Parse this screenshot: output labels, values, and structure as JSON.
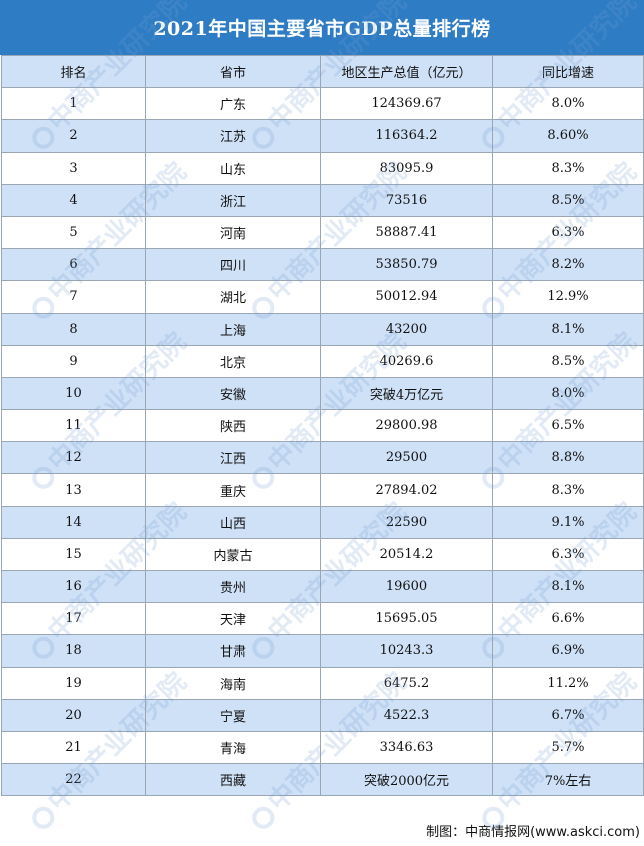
{
  "title": "2021年中国主要省市GDP总量排行榜",
  "columns": [
    "排名",
    "省市",
    "地区生产总值（亿元）",
    "同比增速"
  ],
  "rows": [
    [
      "1",
      "广东",
      "124369.67",
      "8.0%"
    ],
    [
      "2",
      "江苏",
      "116364.2",
      "8.60%"
    ],
    [
      "3",
      "山东",
      "83095.9",
      "8.3%"
    ],
    [
      "4",
      "浙江",
      "73516",
      "8.5%"
    ],
    [
      "5",
      "河南",
      "58887.41",
      "6.3%"
    ],
    [
      "6",
      "四川",
      "53850.79",
      "8.2%"
    ],
    [
      "7",
      "湖北",
      "50012.94",
      "12.9%"
    ],
    [
      "8",
      "上海",
      "43200",
      "8.1%"
    ],
    [
      "9",
      "北京",
      "40269.6",
      "8.5%"
    ],
    [
      "10",
      "安徽",
      "突破4万亿元",
      "8.0%"
    ],
    [
      "11",
      "陕西",
      "29800.98",
      "6.5%"
    ],
    [
      "12",
      "江西",
      "29500",
      "8.8%"
    ],
    [
      "13",
      "重庆",
      "27894.02",
      "8.3%"
    ],
    [
      "14",
      "山西",
      "22590",
      "9.1%"
    ],
    [
      "15",
      "内蒙古",
      "20514.2",
      "6.3%"
    ],
    [
      "16",
      "贵州",
      "19600",
      "8.1%"
    ],
    [
      "17",
      "天津",
      "15695.05",
      "6.6%"
    ],
    [
      "18",
      "甘肃",
      "10243.3",
      "6.9%"
    ],
    [
      "19",
      "海南",
      "6475.2",
      "11.2%"
    ],
    [
      "20",
      "宁夏",
      "4522.3",
      "6.7%"
    ],
    [
      "21",
      "青海",
      "3346.63",
      "5.7%"
    ],
    [
      "22",
      "西藏",
      "突破2000亿元",
      "7%左右"
    ]
  ],
  "footer": "制图：中商情报网(www.askci.com)",
  "watermark": "中商产业研究院",
  "colors": {
    "header_bar": "#2e7cc4",
    "stripe": "#cfe1f7",
    "border": "#9aa6b4"
  }
}
